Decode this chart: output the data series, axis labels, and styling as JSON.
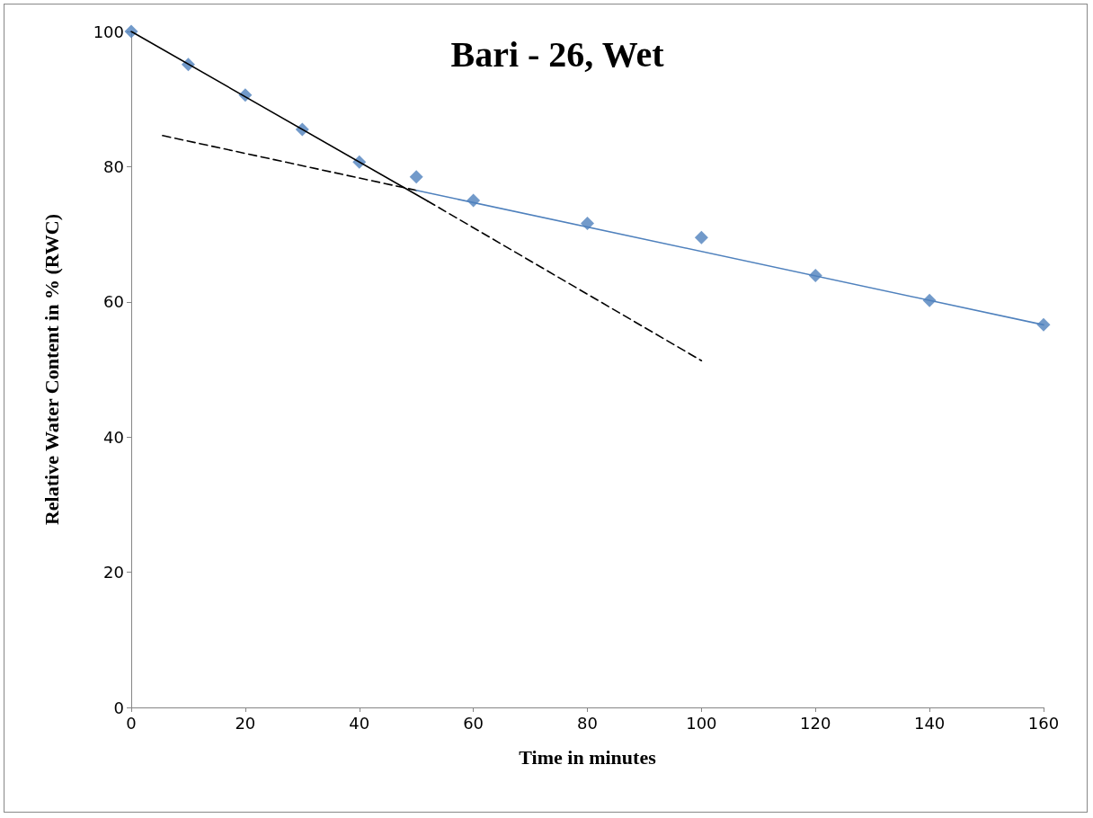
{
  "chart_data": {
    "type": "scatter",
    "title": "Bari - 26, Wet",
    "xlabel": "Time in minutes",
    "ylabel": "Relative Water Content in % (RWC)",
    "xlim": [
      0,
      160
    ],
    "xticks": [
      0,
      20,
      40,
      60,
      80,
      100,
      120,
      140,
      160
    ],
    "ylim": [
      0,
      100
    ],
    "yticks": [
      0,
      20,
      40,
      60,
      80,
      100
    ],
    "grid": false,
    "series": [
      {
        "color": "#4f81bd",
        "marker": "diamond",
        "x": [
          0,
          10,
          20,
          30,
          40,
          50,
          60,
          80,
          100,
          120,
          140,
          160
        ],
        "values": [
          100,
          95.1,
          90.6,
          85.5,
          80.7,
          78.5,
          75.0,
          71.6,
          69.5,
          63.9,
          60.2,
          56.6
        ]
      },
      {
        "type": "line",
        "color": "#000000",
        "marker": "none",
        "line_style": "solid",
        "x": [
          0,
          52
        ],
        "values": [
          100,
          74.9
        ]
      },
      {
        "type": "line",
        "color": "#000000",
        "marker": "none",
        "line_style": "dashed",
        "x": [
          52,
          100
        ],
        "values": [
          74.9,
          51.3
        ]
      },
      {
        "type": "line",
        "color": "#000000",
        "marker": "none",
        "line_style": "dashed",
        "x": [
          5.5,
          50
        ],
        "values": [
          84.6,
          76.5
        ]
      },
      {
        "type": "line",
        "color": "#4f81bd",
        "marker": "none",
        "line_style": "solid",
        "x": [
          50,
          160
        ],
        "values": [
          76.5,
          56.6
        ]
      }
    ]
  }
}
